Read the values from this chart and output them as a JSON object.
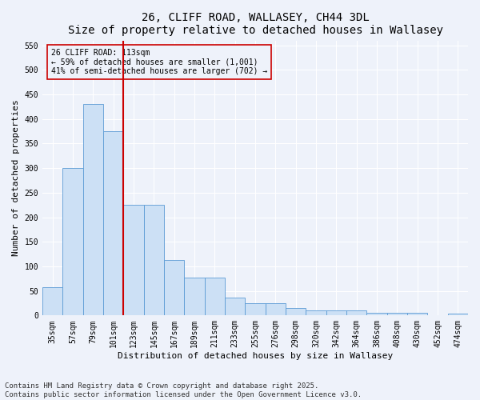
{
  "title": "26, CLIFF ROAD, WALLASEY, CH44 3DL",
  "subtitle": "Size of property relative to detached houses in Wallasey",
  "xlabel": "Distribution of detached houses by size in Wallasey",
  "ylabel": "Number of detached properties",
  "bar_labels": [
    "35sqm",
    "57sqm",
    "79sqm",
    "101sqm",
    "123sqm",
    "145sqm",
    "167sqm",
    "189sqm",
    "211sqm",
    "233sqm",
    "255sqm",
    "276sqm",
    "298sqm",
    "320sqm",
    "342sqm",
    "364sqm",
    "386sqm",
    "408sqm",
    "430sqm",
    "452sqm",
    "474sqm"
  ],
  "bar_values": [
    57,
    300,
    430,
    375,
    225,
    225,
    113,
    77,
    77,
    37,
    25,
    25,
    15,
    10,
    10,
    10,
    5,
    5,
    5,
    0,
    3
  ],
  "bar_color": "#cce0f5",
  "bar_edge_color": "#5b9bd5",
  "vline_x": 3.5,
  "vline_color": "#cc0000",
  "ann_line1": "26 CLIFF ROAD: 113sqm",
  "ann_line2": "← 59% of detached houses are smaller (1,001)",
  "ann_line3": "41% of semi-detached houses are larger (702) →",
  "annotation_box_color": "#cc0000",
  "ylim": [
    0,
    560
  ],
  "yticks": [
    0,
    50,
    100,
    150,
    200,
    250,
    300,
    350,
    400,
    450,
    500,
    550
  ],
  "background_color": "#eef2fa",
  "grid_color": "#ffffff",
  "footer_text": "Contains HM Land Registry data © Crown copyright and database right 2025.\nContains public sector information licensed under the Open Government Licence v3.0.",
  "title_fontsize": 10,
  "label_fontsize": 8,
  "tick_fontsize": 7,
  "footer_fontsize": 6.5
}
